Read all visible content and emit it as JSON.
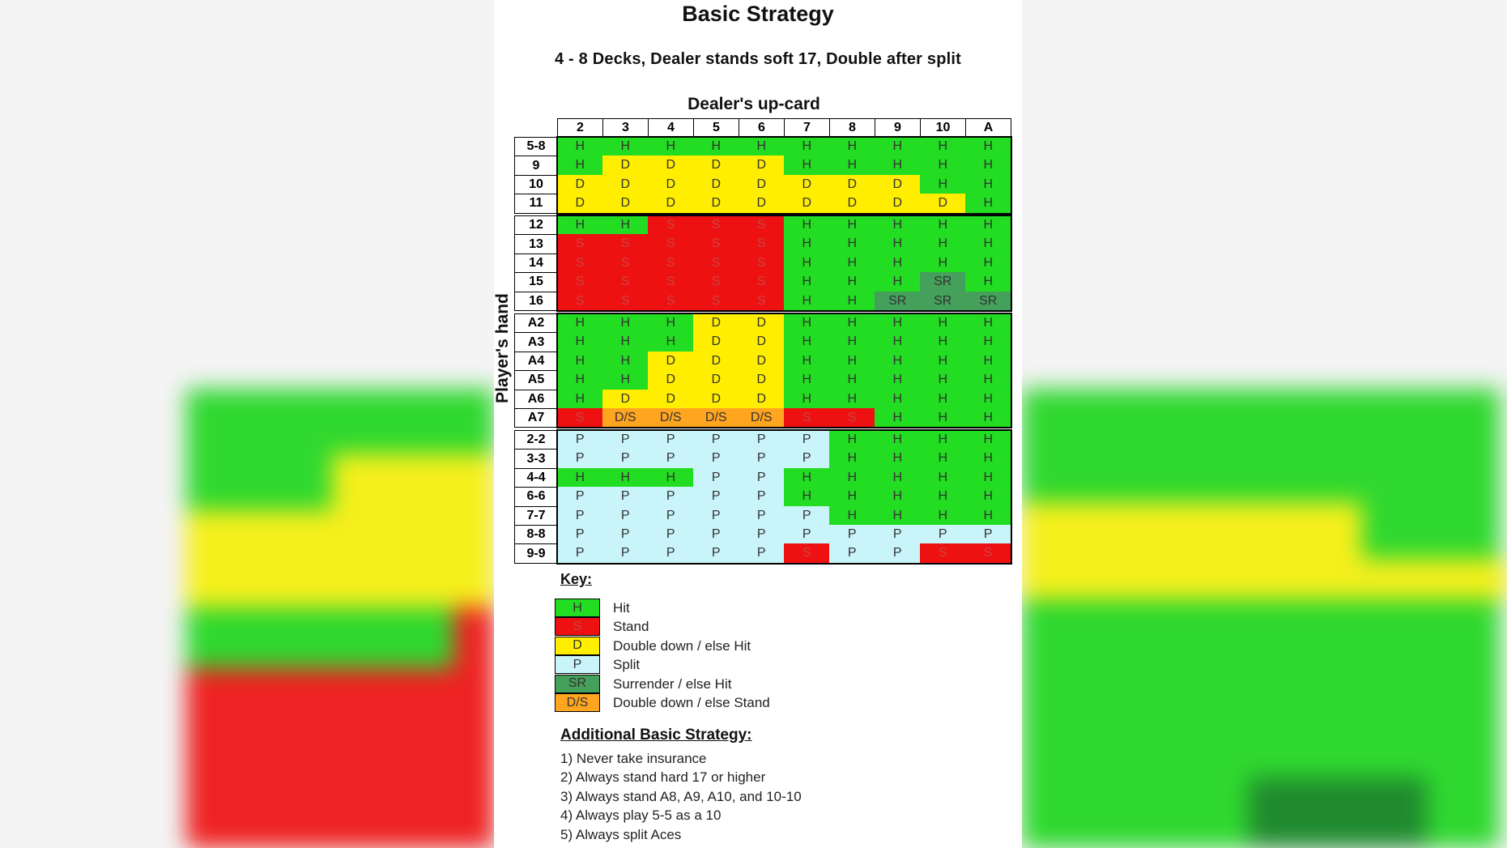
{
  "title": "Basic Strategy",
  "subtitle": "4 - 8  Decks,  Dealer stands soft 17, Double after split",
  "axis_top": "Dealer's up-card",
  "axis_left": "Player's hand",
  "colors": {
    "H": "#22dd22",
    "S": "#ee1111",
    "D": "#ffee00",
    "P": "#c8f4fa",
    "SR": "#44a05a",
    "D/S": "#ffa520"
  },
  "dealer_cards": [
    "2",
    "3",
    "4",
    "5",
    "6",
    "7",
    "8",
    "9",
    "10",
    "A"
  ],
  "blocks": [
    {
      "rows": [
        {
          "label": "5-8",
          "cells": [
            "H",
            "H",
            "H",
            "H",
            "H",
            "H",
            "H",
            "H",
            "H",
            "H"
          ]
        },
        {
          "label": "9",
          "cells": [
            "H",
            "D",
            "D",
            "D",
            "D",
            "H",
            "H",
            "H",
            "H",
            "H"
          ]
        },
        {
          "label": "10",
          "cells": [
            "D",
            "D",
            "D",
            "D",
            "D",
            "D",
            "D",
            "D",
            "H",
            "H"
          ]
        },
        {
          "label": "11",
          "cells": [
            "D",
            "D",
            "D",
            "D",
            "D",
            "D",
            "D",
            "D",
            "D",
            "H"
          ]
        }
      ]
    },
    {
      "rows": [
        {
          "label": "12",
          "cells": [
            "H",
            "H",
            "S",
            "S",
            "S",
            "H",
            "H",
            "H",
            "H",
            "H"
          ]
        },
        {
          "label": "13",
          "cells": [
            "S",
            "S",
            "S",
            "S",
            "S",
            "H",
            "H",
            "H",
            "H",
            "H"
          ]
        },
        {
          "label": "14",
          "cells": [
            "S",
            "S",
            "S",
            "S",
            "S",
            "H",
            "H",
            "H",
            "H",
            "H"
          ]
        },
        {
          "label": "15",
          "cells": [
            "S",
            "S",
            "S",
            "S",
            "S",
            "H",
            "H",
            "H",
            "SR",
            "H"
          ]
        },
        {
          "label": "16",
          "cells": [
            "S",
            "S",
            "S",
            "S",
            "S",
            "H",
            "H",
            "SR",
            "SR",
            "SR"
          ]
        }
      ]
    },
    {
      "rows": [
        {
          "label": "A2",
          "cells": [
            "H",
            "H",
            "H",
            "D",
            "D",
            "H",
            "H",
            "H",
            "H",
            "H"
          ]
        },
        {
          "label": "A3",
          "cells": [
            "H",
            "H",
            "H",
            "D",
            "D",
            "H",
            "H",
            "H",
            "H",
            "H"
          ]
        },
        {
          "label": "A4",
          "cells": [
            "H",
            "H",
            "D",
            "D",
            "D",
            "H",
            "H",
            "H",
            "H",
            "H"
          ]
        },
        {
          "label": "A5",
          "cells": [
            "H",
            "H",
            "D",
            "D",
            "D",
            "H",
            "H",
            "H",
            "H",
            "H"
          ]
        },
        {
          "label": "A6",
          "cells": [
            "H",
            "D",
            "D",
            "D",
            "D",
            "H",
            "H",
            "H",
            "H",
            "H"
          ]
        },
        {
          "label": "A7",
          "cells": [
            "S",
            "D/S",
            "D/S",
            "D/S",
            "D/S",
            "S",
            "S",
            "H",
            "H",
            "H"
          ]
        }
      ]
    },
    {
      "rows": [
        {
          "label": "2-2",
          "cells": [
            "P",
            "P",
            "P",
            "P",
            "P",
            "P",
            "H",
            "H",
            "H",
            "H"
          ]
        },
        {
          "label": "3-3",
          "cells": [
            "P",
            "P",
            "P",
            "P",
            "P",
            "P",
            "H",
            "H",
            "H",
            "H"
          ]
        },
        {
          "label": "4-4",
          "cells": [
            "H",
            "H",
            "H",
            "P",
            "P",
            "H",
            "H",
            "H",
            "H",
            "H"
          ]
        },
        {
          "label": "6-6",
          "cells": [
            "P",
            "P",
            "P",
            "P",
            "P",
            "H",
            "H",
            "H",
            "H",
            "H"
          ]
        },
        {
          "label": "7-7",
          "cells": [
            "P",
            "P",
            "P",
            "P",
            "P",
            "P",
            "H",
            "H",
            "H",
            "H"
          ]
        },
        {
          "label": "8-8",
          "cells": [
            "P",
            "P",
            "P",
            "P",
            "P",
            "P",
            "P",
            "P",
            "P",
            "P"
          ]
        },
        {
          "label": "9-9",
          "cells": [
            "P",
            "P",
            "P",
            "P",
            "P",
            "S",
            "P",
            "P",
            "S",
            "S"
          ]
        }
      ]
    }
  ],
  "key": {
    "title": "Key:",
    "items": [
      {
        "code": "H",
        "label": "Hit"
      },
      {
        "code": "S",
        "label": "Stand"
      },
      {
        "code": "D",
        "label": "Double down / else Hit"
      },
      {
        "code": "P",
        "label": "Split"
      },
      {
        "code": "SR",
        "label": "Surrender / else Hit"
      },
      {
        "code": "D/S",
        "label": "Double down / else Stand"
      }
    ]
  },
  "additional": {
    "title": "Additional Basic Strategy:",
    "items": [
      "1) Never take insurance",
      "2) Always stand hard 17 or higher",
      "3) Always stand A8, A9, A10, and 10-10",
      "4) Always play 5-5 as a 10",
      "5) Always split Aces"
    ]
  }
}
